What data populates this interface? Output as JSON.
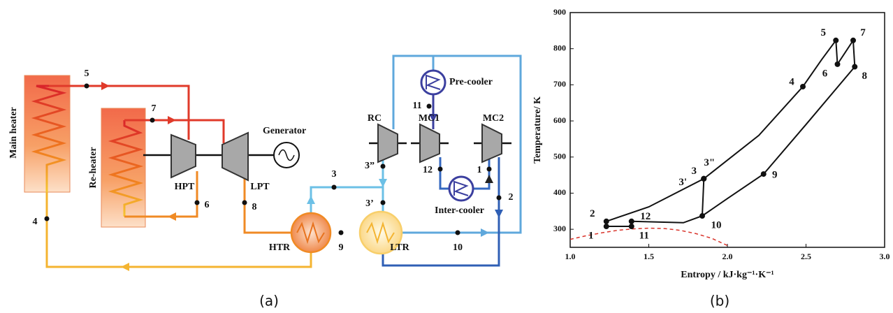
{
  "diagram": {
    "caption": "(a)",
    "components": {
      "main_heater": "Main heater",
      "re_heater": "Re-heater",
      "hpt": "HPT",
      "lpt": "LPT",
      "generator": "Generator",
      "rc": "RC",
      "mc1": "MC1",
      "mc2": "MC2",
      "pre_cooler": "Pre-cooler",
      "inter_cooler": "Inter-cooler",
      "htr": "HTR",
      "ltr": "LTR"
    },
    "states": {
      "s1": "1",
      "s2": "2",
      "s3": "3",
      "s3pp": "3”",
      "s3p": "3’",
      "s4": "4",
      "s5": "5",
      "s6": "6",
      "s7": "7",
      "s8": "8",
      "s9": "9",
      "s10": "10",
      "s11": "11",
      "s12": "12"
    }
  },
  "chart_data": {
    "type": "line",
    "caption": "(b)",
    "x_label": "Entropy / kJ·kg⁻¹·K⁻¹",
    "y_label": "Temperature/ K",
    "xlim": [
      1.0,
      3.0
    ],
    "ylim": [
      250,
      900
    ],
    "xticks": [
      {
        "value": 1,
        "label": "1.0"
      },
      {
        "value": 1.5,
        "label": "1.5"
      },
      {
        "value": 2,
        "label": "2.0"
      },
      {
        "value": 2.5,
        "label": "2.5"
      },
      {
        "value": 3,
        "label": "3.0"
      }
    ],
    "yticks": [
      300,
      400,
      500,
      600,
      700,
      800,
      900
    ],
    "series": [
      {
        "color": "#111111",
        "dashed": false,
        "x": [
          1.39,
          1.23,
          1.23,
          1.5,
          1.85,
          2.2,
          2.48,
          2.6,
          2.69,
          2.7,
          2.8,
          2.81,
          2.5,
          2.23,
          2.0,
          1.84,
          1.72,
          1.39,
          1.39,
          null,
          1.84,
          1.85
        ],
        "values": [
          308,
          308,
          322,
          362,
          440,
          560,
          695,
          770,
          823,
          757,
          823,
          750,
          590,
          453,
          385,
          337,
          318,
          322,
          308,
          null,
          337,
          440
        ]
      },
      {
        "color": "#d9342b",
        "dashed": true,
        "x": [
          1.0,
          1.1,
          1.2,
          1.3,
          1.4,
          1.5,
          1.6,
          1.7,
          1.8,
          1.9,
          2.0
        ],
        "values": [
          272,
          282,
          290,
          297,
          301,
          303,
          302,
          297,
          288,
          275,
          255
        ]
      }
    ],
    "points": {
      "labels": [
        "1",
        "2",
        "3'",
        "3",
        "3\"",
        "4",
        "5",
        "6",
        "7",
        "8",
        "9",
        "10",
        "11",
        "12"
      ],
      "x": [
        1.23,
        1.23,
        1.85,
        1.85,
        1.85,
        2.48,
        2.69,
        2.7,
        2.8,
        2.81,
        2.23,
        1.84,
        1.39,
        1.39
      ],
      "values": [
        308,
        322,
        440,
        440,
        440,
        695,
        823,
        757,
        823,
        750,
        453,
        337,
        308,
        322
      ],
      "color": "#111111"
    }
  }
}
